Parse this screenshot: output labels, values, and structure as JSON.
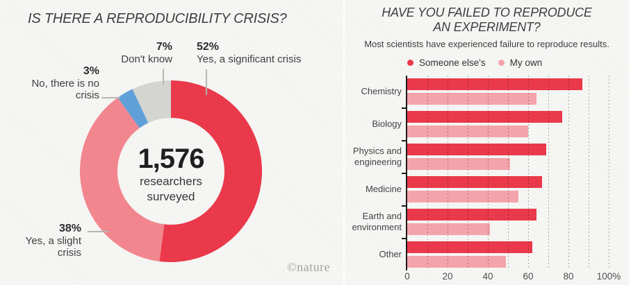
{
  "footer": {
    "logo": "©nature"
  },
  "colors": {
    "red": "#e9394a",
    "donut_pink": "#f2868f",
    "bar_pink": "#f4a3aa",
    "blue": "#60a0d8",
    "gray": "#d4d4d1"
  },
  "chart_data": [
    {
      "type": "pie",
      "title": "IS THERE A REPRODUCIBILITY CRISIS?",
      "center": {
        "value": "1,576",
        "label": [
          "researchers",
          "surveyed"
        ]
      },
      "slices": [
        {
          "label": "Yes, a significant crisis",
          "pct_label": "52%",
          "value": 52,
          "color": "#e9394a"
        },
        {
          "label": "Yes, a slight crisis",
          "pct_label": "38%",
          "value": 38,
          "color": "#f2868f"
        },
        {
          "label": "No, there is no crisis",
          "pct_label": "3%",
          "value": 3,
          "color": "#60a0d8"
        },
        {
          "label": "Don't know",
          "pct_label": "7%",
          "value": 7,
          "color": "#d4d4d1"
        }
      ],
      "callouts": [
        {
          "pct": "7%",
          "lines": [
            "Don't know"
          ]
        },
        {
          "pct": "52%",
          "lines": [
            "Yes, a significant crisis"
          ]
        },
        {
          "pct": "3%",
          "lines": [
            "No, there is no",
            "crisis"
          ]
        },
        {
          "pct": "38%",
          "lines": [
            "Yes, a slight",
            "crisis"
          ]
        }
      ]
    },
    {
      "type": "bar",
      "orientation": "horizontal",
      "title": "HAVE YOU FAILED TO REPRODUCE AN EXPERIMENT?",
      "title_lines": [
        "HAVE YOU FAILED TO REPRODUCE",
        "AN EXPERIMENT?"
      ],
      "subtitle": "Most scientists have experienced failure to reproduce results.",
      "categories": [
        "Chemistry",
        "Biology",
        "Physics and engineering",
        "Medicine",
        "Earth and environment",
        "Other"
      ],
      "categories_lines": [
        [
          "Chemistry"
        ],
        [
          "Biology"
        ],
        [
          "Physics and",
          "engineering"
        ],
        [
          "Medicine"
        ],
        [
          "Earth and",
          "environment"
        ],
        [
          "Other"
        ]
      ],
      "series": [
        {
          "name": "Someone else's",
          "color": "#e9394a",
          "values": [
            87,
            77,
            69,
            67,
            64,
            62
          ]
        },
        {
          "name": "My own",
          "color": "#f4a3aa",
          "values": [
            64,
            60,
            51,
            55,
            41,
            49
          ]
        }
      ],
      "xlim": [
        0,
        100
      ],
      "x_ticks": [
        {
          "label": "0",
          "value": 0
        },
        {
          "label": "20",
          "value": 20
        },
        {
          "label": "40",
          "value": 40
        },
        {
          "label": "60",
          "value": 60
        },
        {
          "label": "80",
          "value": 80
        },
        {
          "label": "100%",
          "value": 100
        }
      ],
      "grid": "dotted-vertical",
      "legend_position": "top-left"
    }
  ]
}
